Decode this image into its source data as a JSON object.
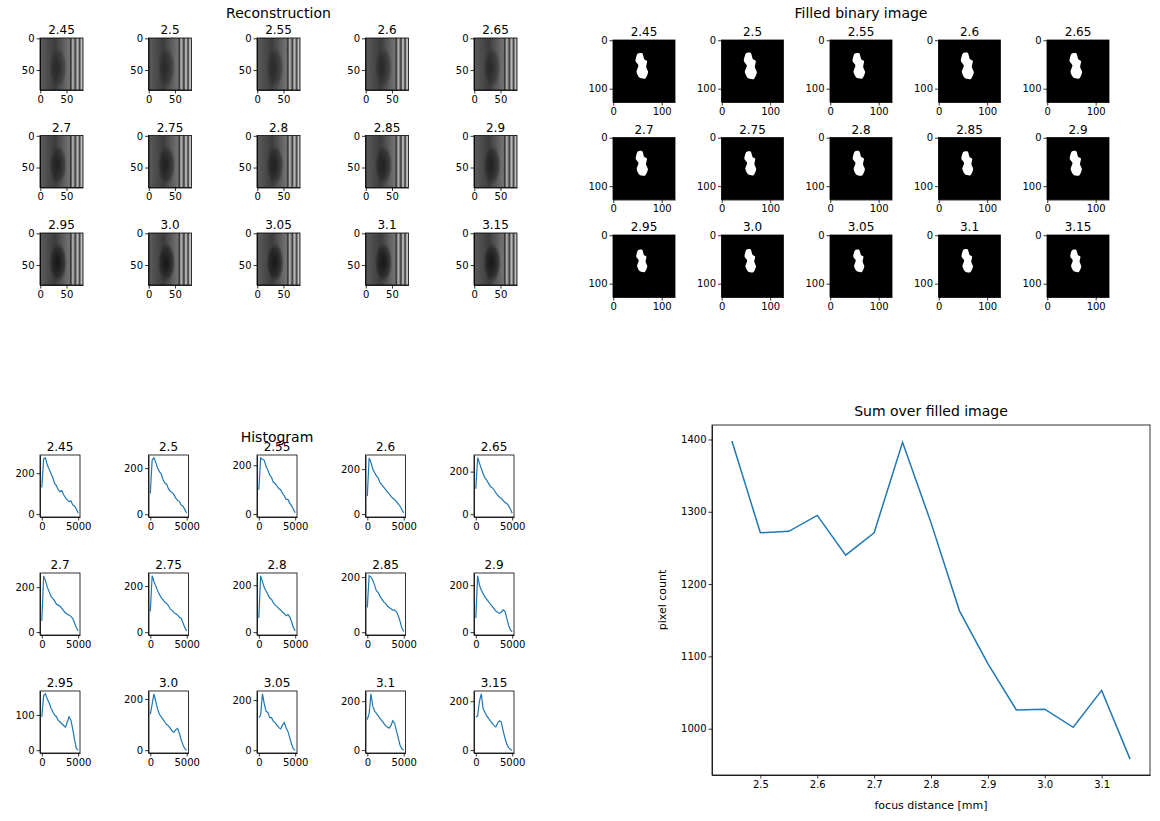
{
  "chart_data": [
    {
      "type": "image",
      "title": "Reconstruction",
      "panels": [
        {
          "title": "2.45"
        },
        {
          "title": "2.5"
        },
        {
          "title": "2.55"
        },
        {
          "title": "2.6"
        },
        {
          "title": "2.65"
        },
        {
          "title": "2.7"
        },
        {
          "title": "2.75"
        },
        {
          "title": "2.8"
        },
        {
          "title": "2.85"
        },
        {
          "title": "2.9"
        },
        {
          "title": "2.95"
        },
        {
          "title": "3.0"
        },
        {
          "title": "3.05"
        },
        {
          "title": "3.1"
        },
        {
          "title": "3.15"
        }
      ],
      "xlim": [
        -0.5,
        81.5
      ],
      "ylim": [
        81.5,
        -0.5
      ],
      "xticks": [
        0,
        50
      ],
      "yticks": [
        0,
        50
      ]
    },
    {
      "type": "image",
      "title": "Filled binary image",
      "panels": [
        {
          "title": "2.45"
        },
        {
          "title": "2.5"
        },
        {
          "title": "2.55"
        },
        {
          "title": "2.6"
        },
        {
          "title": "2.65"
        },
        {
          "title": "2.7"
        },
        {
          "title": "2.75"
        },
        {
          "title": "2.8"
        },
        {
          "title": "2.85"
        },
        {
          "title": "2.9"
        },
        {
          "title": "2.95"
        },
        {
          "title": "3.0"
        },
        {
          "title": "3.05"
        },
        {
          "title": "3.1"
        },
        {
          "title": "3.15"
        }
      ],
      "xlim": [
        -0.5,
        127.5
      ],
      "ylim": [
        127.5,
        -0.5
      ],
      "xticks": [
        0,
        100
      ],
      "yticks": [
        0,
        100
      ]
    },
    {
      "type": "line",
      "title": "Histogram",
      "color": "#1f77b4",
      "x": [
        0,
        250,
        500,
        750,
        1000,
        1250,
        1500,
        1750,
        2000,
        2250,
        2500,
        2750,
        3000,
        3250,
        3500,
        3750,
        4000,
        4250,
        4500,
        4750,
        5000
      ],
      "xlim": [
        -250,
        5250
      ],
      "xticks": [
        0,
        5000
      ],
      "panels": [
        {
          "title": "2.45",
          "values": [
            130,
            270,
            275,
            240,
            220,
            200,
            180,
            150,
            140,
            120,
            110,
            115,
            95,
            80,
            70,
            60,
            65,
            45,
            40,
            25,
            5
          ],
          "ylim": [
            -14,
            289
          ],
          "yticks": [
            0,
            200
          ]
        },
        {
          "title": "2.5",
          "values": [
            90,
            235,
            245,
            225,
            200,
            185,
            175,
            150,
            135,
            130,
            110,
            100,
            95,
            85,
            70,
            60,
            55,
            40,
            35,
            20,
            5
          ],
          "ylim": [
            -12,
            257
          ],
          "yticks": [
            0,
            200
          ]
        },
        {
          "title": "2.55",
          "values": [
            100,
            230,
            225,
            220,
            195,
            180,
            160,
            150,
            130,
            125,
            115,
            105,
            100,
            85,
            75,
            60,
            60,
            45,
            35,
            20,
            5
          ],
          "ylim": [
            -12,
            242
          ],
          "yticks": [
            0,
            200
          ]
        },
        {
          "title": "2.6",
          "values": [
            80,
            250,
            230,
            200,
            185,
            170,
            160,
            140,
            130,
            120,
            110,
            100,
            90,
            80,
            70,
            65,
            55,
            45,
            35,
            20,
            5
          ],
          "ylim": [
            -13,
            263
          ],
          "yticks": [
            0,
            200
          ]
        },
        {
          "title": "2.65",
          "values": [
            120,
            265,
            240,
            215,
            190,
            170,
            160,
            145,
            130,
            125,
            115,
            100,
            90,
            80,
            75,
            65,
            55,
            50,
            40,
            25,
            5
          ],
          "ylim": [
            -13,
            278
          ],
          "yticks": [
            0,
            200
          ]
        },
        {
          "title": "2.7",
          "values": [
            50,
            250,
            230,
            200,
            180,
            160,
            150,
            140,
            125,
            120,
            115,
            105,
            95,
            85,
            80,
            75,
            70,
            60,
            40,
            20,
            5
          ],
          "ylim": [
            -13,
            263
          ],
          "yticks": [
            0,
            200
          ]
        },
        {
          "title": "2.75",
          "values": [
            90,
            245,
            220,
            200,
            180,
            165,
            150,
            140,
            130,
            125,
            115,
            100,
            95,
            85,
            80,
            75,
            65,
            60,
            40,
            20,
            5
          ],
          "ylim": [
            -12,
            257
          ],
          "yticks": [
            0,
            200
          ]
        },
        {
          "title": "2.8",
          "values": [
            60,
            240,
            215,
            190,
            175,
            160,
            145,
            140,
            125,
            115,
            110,
            100,
            95,
            85,
            80,
            70,
            75,
            65,
            45,
            20,
            5
          ],
          "ylim": [
            -12,
            252
          ],
          "yticks": [
            0,
            200
          ]
        },
        {
          "title": "2.85",
          "values": [
            90,
            205,
            200,
            190,
            170,
            150,
            145,
            130,
            120,
            110,
            105,
            95,
            90,
            85,
            80,
            80,
            75,
            60,
            40,
            15,
            3
          ],
          "ylim": [
            -10,
            215
          ],
          "yticks": [
            0,
            200
          ]
        },
        {
          "title": "2.9",
          "values": [
            60,
            240,
            200,
            180,
            165,
            150,
            140,
            130,
            120,
            110,
            100,
            90,
            85,
            80,
            85,
            95,
            90,
            60,
            30,
            10,
            2
          ],
          "ylim": [
            -12,
            252
          ],
          "yticks": [
            0,
            200
          ]
        },
        {
          "title": "2.95",
          "values": [
            95,
            155,
            160,
            145,
            135,
            120,
            110,
            100,
            95,
            85,
            80,
            75,
            70,
            65,
            80,
            95,
            85,
            60,
            30,
            5,
            0
          ],
          "ylim": [
            -8,
            168
          ],
          "yticks": [
            0,
            100
          ]
        },
        {
          "title": "3.0",
          "values": [
            140,
            180,
            220,
            190,
            160,
            140,
            130,
            120,
            110,
            100,
            95,
            85,
            75,
            70,
            80,
            85,
            65,
            40,
            20,
            5,
            0
          ],
          "ylim": [
            -11,
            231
          ],
          "yticks": [
            0,
            200
          ]
        },
        {
          "title": "3.05",
          "values": [
            130,
            140,
            225,
            185,
            155,
            150,
            130,
            130,
            115,
            110,
            100,
            90,
            85,
            100,
            110,
            90,
            75,
            50,
            25,
            5,
            0
          ],
          "ylim": [
            -11,
            236
          ],
          "yticks": [
            0,
            200
          ]
        },
        {
          "title": "3.1",
          "values": [
            125,
            150,
            230,
            180,
            160,
            150,
            140,
            130,
            120,
            110,
            100,
            95,
            90,
            100,
            120,
            110,
            80,
            50,
            20,
            5,
            0
          ],
          "ylim": [
            -12,
            242
          ],
          "yticks": [
            0,
            200
          ]
        },
        {
          "title": "3.15",
          "values": [
            135,
            140,
            200,
            230,
            170,
            155,
            140,
            130,
            120,
            110,
            100,
            95,
            110,
            120,
            115,
            80,
            50,
            25,
            10,
            3,
            0
          ],
          "ylim": [
            -12,
            242
          ],
          "yticks": [
            0,
            200
          ]
        }
      ]
    },
    {
      "type": "line",
      "title": "Sum over filled image",
      "xlabel": "focus distance [mm]",
      "ylabel": "pixel count",
      "color": "#1f77b4",
      "x": [
        2.45,
        2.5,
        2.55,
        2.6,
        2.65,
        2.7,
        2.75,
        2.8,
        2.85,
        2.9,
        2.95,
        3.0,
        3.05,
        3.1,
        3.15
      ],
      "values": [
        1398,
        1271,
        1273,
        1295,
        1240,
        1271,
        1396,
        1285,
        1163,
        1090,
        1026,
        1027,
        1002,
        1053,
        958
      ],
      "xlim": [
        2.415,
        3.185
      ],
      "ylim": [
        936,
        1420
      ],
      "xticks": [
        2.5,
        2.6,
        2.7,
        2.8,
        2.9,
        {
          "value": 3.0,
          "label": "3.0"
        },
        3.1
      ],
      "yticks": [
        1000,
        1100,
        1200,
        1300,
        1400
      ]
    }
  ]
}
